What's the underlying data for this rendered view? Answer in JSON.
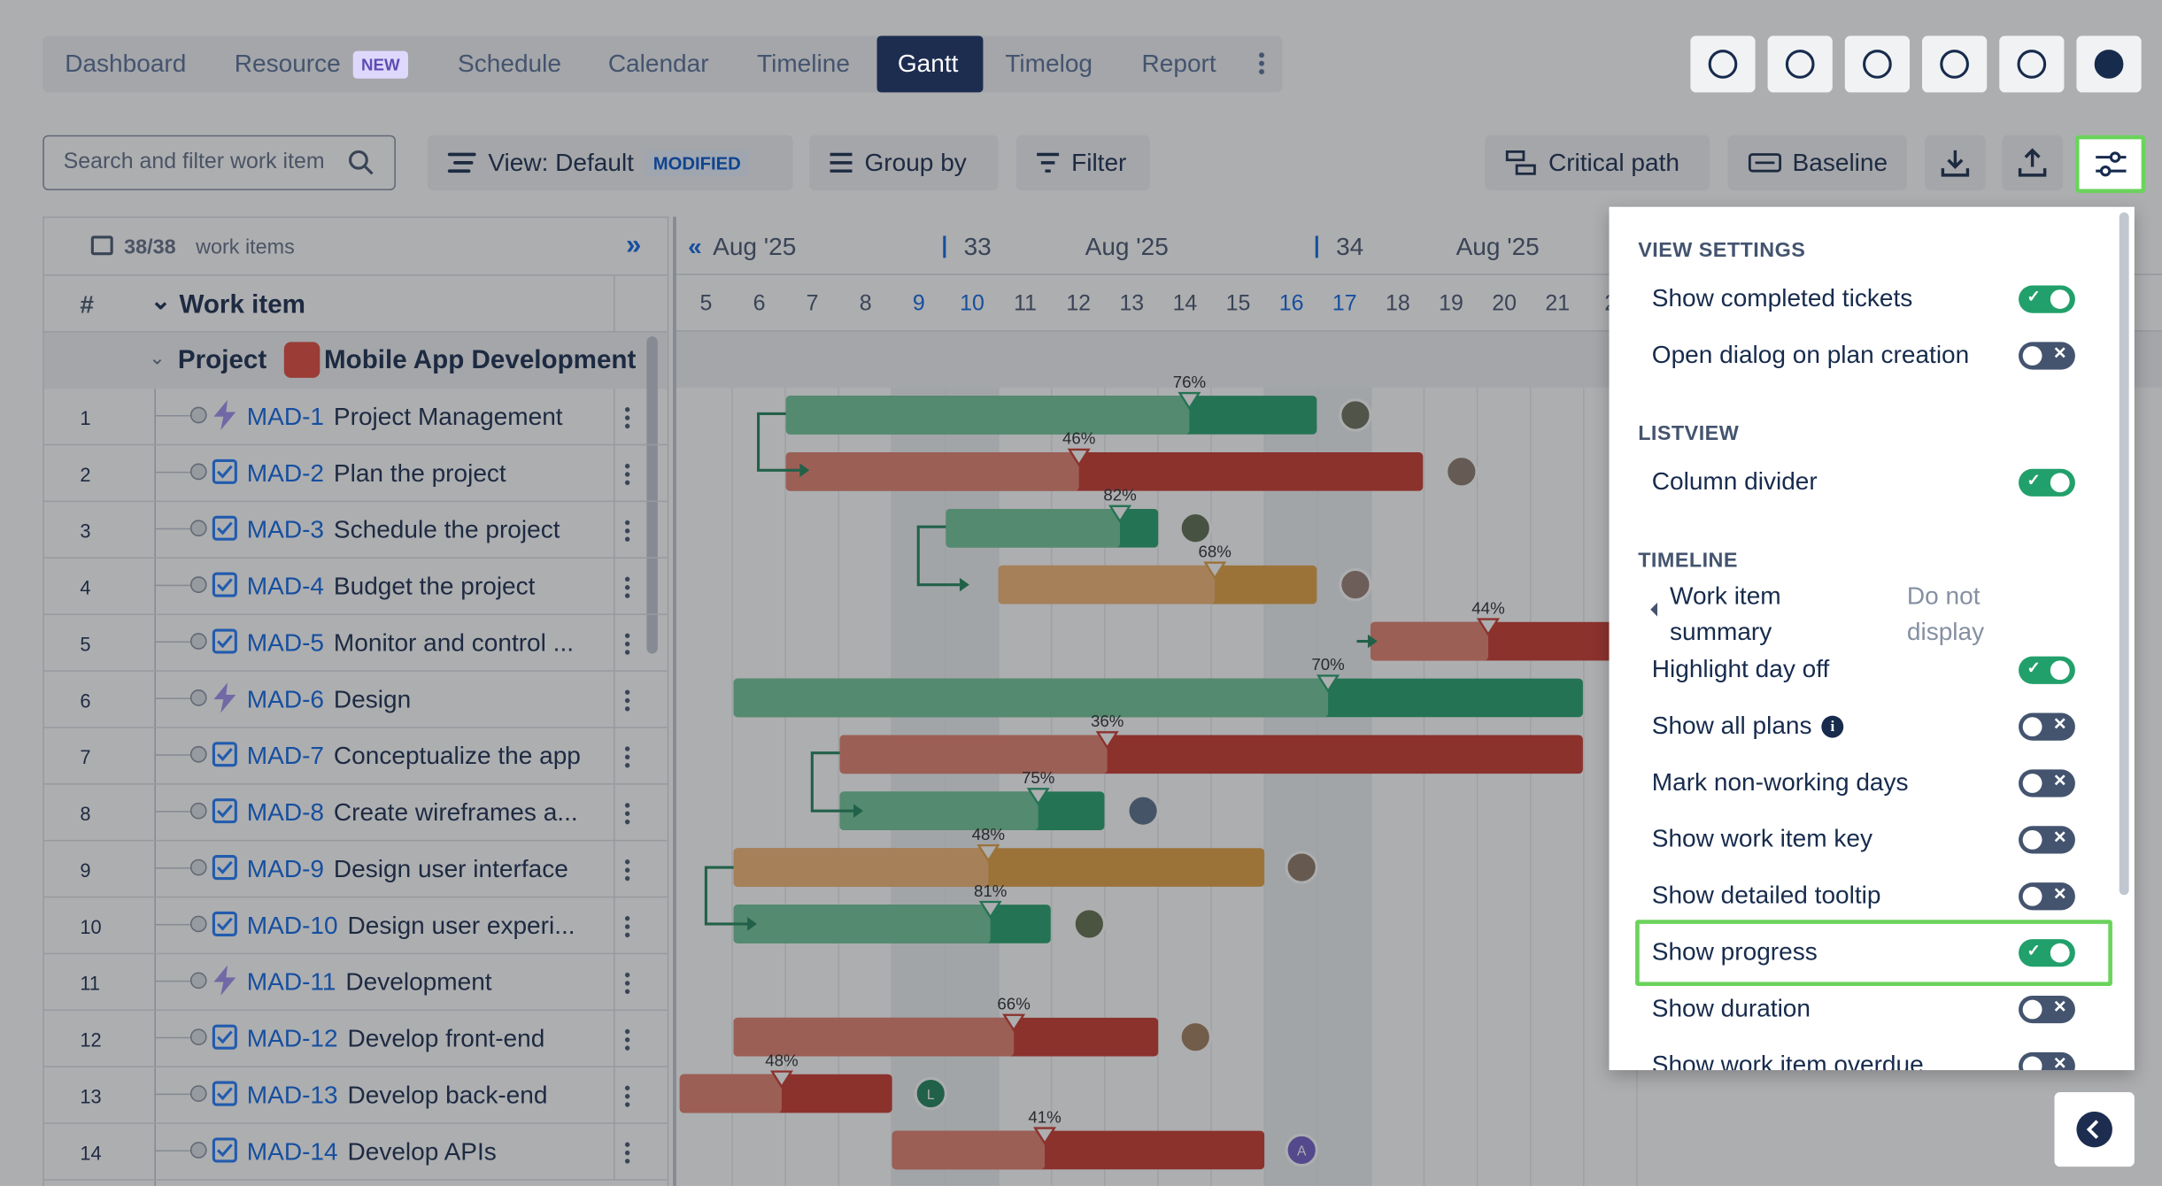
{
  "tabs": [
    {
      "label": "Dashboard"
    },
    {
      "label": "Resource",
      "badge": "NEW"
    },
    {
      "label": "Schedule"
    },
    {
      "label": "Calendar"
    },
    {
      "label": "Timeline"
    },
    {
      "label": "Gantt",
      "active": true
    },
    {
      "label": "Timelog"
    },
    {
      "label": "Report"
    }
  ],
  "toolbar": {
    "search_placeholder": "Search and filter work item",
    "view": "View: Default",
    "view_badge": "MODIFIED",
    "group_by": "Group by",
    "filter": "Filter",
    "critical_path": "Critical path",
    "baseline": "Baseline"
  },
  "list": {
    "count": "38/38",
    "count_suffix": "work items",
    "col_num": "#",
    "col_item": "Work item",
    "project_label": "Project",
    "project_name": "Mobile App Development"
  },
  "timeline": {
    "headers": [
      "Aug '25",
      "33",
      "Aug '25",
      "34",
      "Aug '25"
    ],
    "days": [
      "5",
      "6",
      "7",
      "8",
      "9",
      "10",
      "11",
      "12",
      "13",
      "14",
      "15",
      "16",
      "17",
      "18",
      "19",
      "20",
      "21",
      "2"
    ]
  },
  "rows": [
    {
      "num": "1",
      "key": "MAD-1",
      "title": "Project Management",
      "type": "epic",
      "progress": "76%",
      "color": "green"
    },
    {
      "num": "2",
      "key": "MAD-2",
      "title": "Plan the project",
      "type": "task",
      "progress": "46%",
      "color": "red"
    },
    {
      "num": "3",
      "key": "MAD-3",
      "title": "Schedule the project",
      "type": "task",
      "progress": "82%",
      "color": "green"
    },
    {
      "num": "4",
      "key": "MAD-4",
      "title": "Budget the project",
      "type": "task",
      "progress": "68%",
      "color": "orange"
    },
    {
      "num": "5",
      "key": "MAD-5",
      "title": "Monitor and control ...",
      "type": "task",
      "progress": "44%",
      "color": "red"
    },
    {
      "num": "6",
      "key": "MAD-6",
      "title": "Design",
      "type": "epic",
      "progress": "70%",
      "color": "green"
    },
    {
      "num": "7",
      "key": "MAD-7",
      "title": "Conceptualize the app",
      "type": "task",
      "progress": "36%",
      "color": "red"
    },
    {
      "num": "8",
      "key": "MAD-8",
      "title": "Create wireframes a...",
      "type": "task",
      "progress": "75%",
      "color": "green"
    },
    {
      "num": "9",
      "key": "MAD-9",
      "title": "Design user interface",
      "type": "task",
      "progress": "48%",
      "color": "orange"
    },
    {
      "num": "10",
      "key": "MAD-10",
      "title": "Design user experi...",
      "type": "task",
      "progress": "81%",
      "color": "green"
    },
    {
      "num": "11",
      "key": "MAD-11",
      "title": "Development",
      "type": "epic"
    },
    {
      "num": "12",
      "key": "MAD-12",
      "title": "Develop front-end",
      "type": "task",
      "progress": "66%",
      "color": "red"
    },
    {
      "num": "13",
      "key": "MAD-13",
      "title": "Develop back-end",
      "type": "task",
      "progress": "48%",
      "color": "red",
      "avatar": "L"
    },
    {
      "num": "14",
      "key": "MAD-14",
      "title": "Develop APIs",
      "type": "task",
      "progress": "41%",
      "color": "red",
      "avatar": "A"
    }
  ],
  "settings": {
    "sections": [
      {
        "title": "VIEW SETTINGS",
        "items": [
          {
            "label": "Show completed tickets",
            "on": true
          },
          {
            "label": "Open dialog on plan creation",
            "on": false
          }
        ]
      },
      {
        "title": "LISTVIEW",
        "items": [
          {
            "label": "Column divider",
            "on": true
          }
        ]
      },
      {
        "title": "TIMELINE",
        "items": [
          {
            "label": "Work item summary",
            "value": "Do not display"
          },
          {
            "label": "Highlight day off",
            "on": true
          },
          {
            "label": "Show all plans",
            "on": false,
            "info": true
          },
          {
            "label": "Mark non-working days",
            "on": false
          },
          {
            "label": "Show work item key",
            "on": false
          },
          {
            "label": "Show detailed tooltip",
            "on": false
          },
          {
            "label": "Show progress",
            "on": true,
            "highlight": true
          },
          {
            "label": "Show duration",
            "on": false
          },
          {
            "label": "Show work item overdue",
            "on": false
          }
        ]
      }
    ]
  }
}
